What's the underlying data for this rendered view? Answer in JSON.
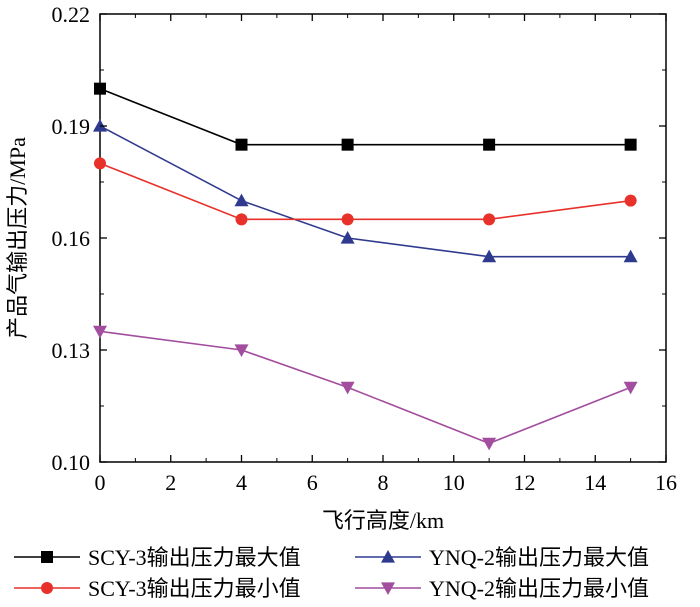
{
  "chart_data": {
    "type": "line",
    "title": "",
    "xlabel": "飞行高度/km",
    "ylabel": "产品气输出压力/MPa",
    "xlim": [
      0,
      16
    ],
    "ylim": [
      0.1,
      0.22
    ],
    "xticks": [
      0,
      2,
      4,
      6,
      8,
      10,
      12,
      14,
      16
    ],
    "yticks": [
      0.1,
      0.13,
      0.16,
      0.19,
      0.22
    ],
    "xtick_labels": [
      "0",
      "2",
      "4",
      "6",
      "8",
      "10",
      "12",
      "14",
      "16"
    ],
    "ytick_labels": [
      "0.10",
      "0.13",
      "0.16",
      "0.19",
      "0.22"
    ],
    "grid": false,
    "legend_position": "bottom",
    "x": [
      0,
      4,
      7,
      11,
      15
    ],
    "series": [
      {
        "name": "SCY-3输出压力最大值",
        "values": [
          0.2,
          0.185,
          0.185,
          0.185,
          0.185
        ],
        "color": "#000000",
        "marker": "square"
      },
      {
        "name": "YNQ-2输出压力最大值",
        "values": [
          0.19,
          0.17,
          0.16,
          0.155,
          0.155
        ],
        "color": "#2f3a8f",
        "marker": "triangle-up"
      },
      {
        "name": "SCY-3输出压力最小值",
        "values": [
          0.18,
          0.165,
          0.165,
          0.165,
          0.17
        ],
        "color": "#e8312a",
        "marker": "circle"
      },
      {
        "name": "YNQ-2输出压力最小值",
        "values": [
          0.135,
          0.13,
          0.12,
          0.105,
          0.12
        ],
        "color": "#a24d9e",
        "marker": "triangle-down"
      }
    ]
  }
}
